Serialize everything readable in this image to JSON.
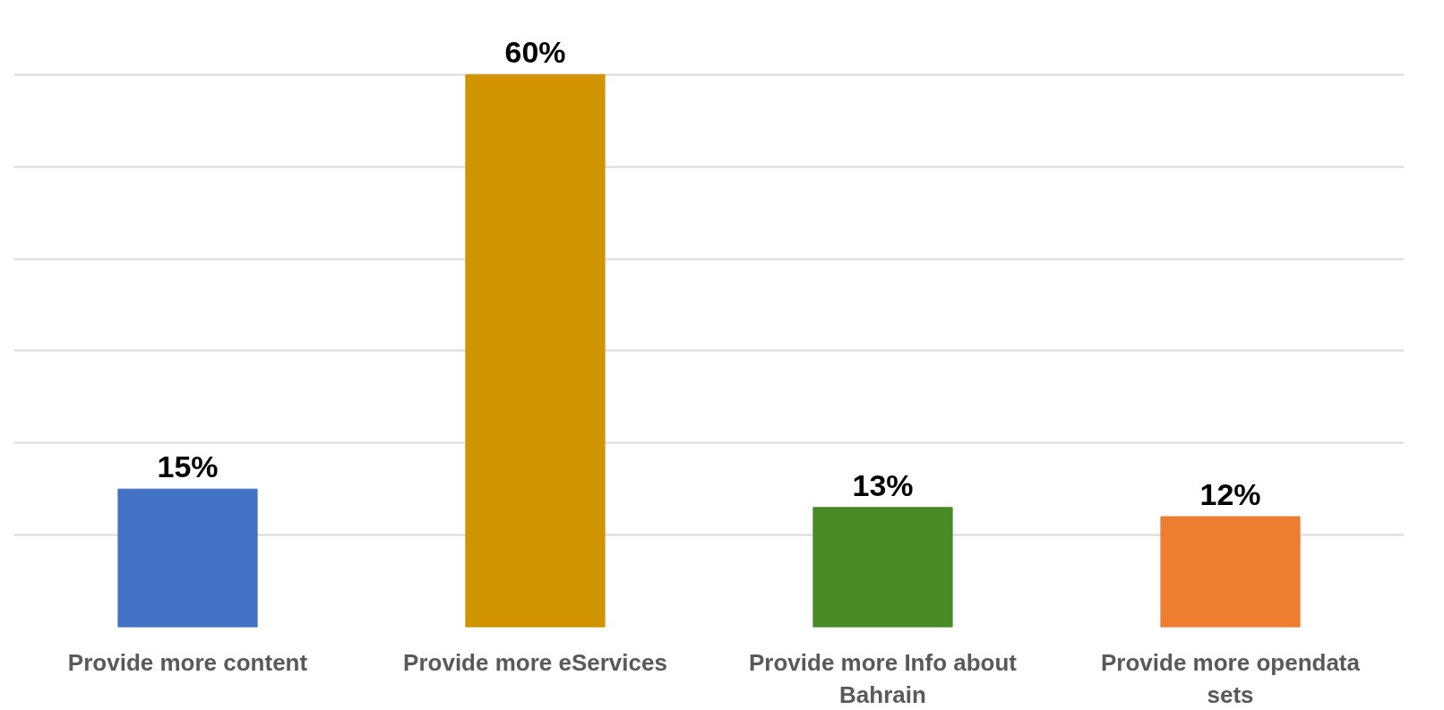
{
  "chart_data": {
    "type": "bar",
    "categories": [
      "Provide more content",
      "Provide more eServices",
      "Provide more Info about Bahrain",
      "Provide more opendata sets"
    ],
    "values": [
      15,
      60,
      13,
      12
    ],
    "value_labels": [
      "15%",
      "60%",
      "13%",
      "12%"
    ],
    "colors": [
      "#4472c4",
      "#d09400",
      "#4a8a26",
      "#ed7d31"
    ],
    "grid": "y",
    "tick_labels": "x"
  }
}
